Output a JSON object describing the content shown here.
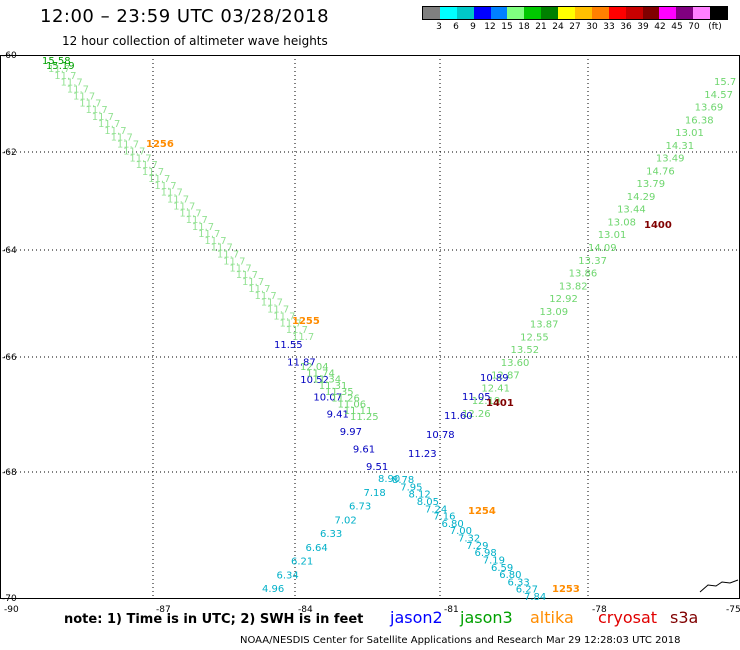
{
  "title": "12:00 – 23:59 UTC 03/28/2018",
  "subtitle": "12 hour collection of altimeter wave heights",
  "legend": {
    "colors": [
      "#808080",
      "#00ffff",
      "#00c8c8",
      "#0000ff",
      "#0080ff",
      "#80ff80",
      "#00c800",
      "#008000",
      "#ffff00",
      "#ffc000",
      "#ff8000",
      "#ff0000",
      "#c80000",
      "#800000",
      "#ff00ff",
      "#800080",
      "#ff80ff",
      "#000000"
    ],
    "labels": [
      "3",
      "6",
      "9",
      "12",
      "15",
      "18",
      "21",
      "24",
      "27",
      "30",
      "33",
      "36",
      "39",
      "42",
      "45",
      "70",
      "(ft)"
    ]
  },
  "axes": {
    "y_ticks": [
      "-60",
      "-62",
      "-64",
      "-66",
      "-68",
      "-70"
    ],
    "x_ticks": [
      "-90",
      "-87",
      "-84",
      "-81",
      "-78",
      "-75"
    ]
  },
  "time_labels": [
    {
      "text": "1256",
      "color": "#ff8c00"
    },
    {
      "text": "1255",
      "color": "#ff8c00"
    },
    {
      "text": "1254",
      "color": "#ff8c00"
    },
    {
      "text": "1253",
      "color": "#ff8c00"
    },
    {
      "text": "1400",
      "color": "#800000"
    },
    {
      "text": "1401",
      "color": "#800000"
    }
  ],
  "track_values": {
    "left_green_top": [
      "15.58",
      "15.19"
    ],
    "right_green": [
      "15.7",
      "14.57",
      "13.69",
      "16.38",
      "13.01",
      "14.31",
      "13.49",
      "14.76",
      "13.79",
      "14.29",
      "13.44",
      "13.08",
      "13.01",
      "14.09",
      "13.37",
      "13.86",
      "13.82",
      "12.92",
      "13.09",
      "13.87",
      "12.55",
      "13.52",
      "13.60",
      "12.87",
      "12.41",
      "12.19",
      "12.26"
    ],
    "right_blue": [
      "10.89",
      "11.05",
      "11.60",
      "10.78",
      "11.23"
    ],
    "left_blue": [
      "11.55",
      "11.87",
      "10.52",
      "10.07",
      "9.41",
      "9.97",
      "9.61",
      "9.51"
    ],
    "lower_left_cyan": [
      "8.90",
      "7.18",
      "6.73",
      "7.02",
      "6.33",
      "6.64",
      "6.21",
      "6.34",
      "4.96"
    ],
    "lower_right_cyan": [
      "8.78",
      "7.95",
      "8.12",
      "8.05",
      "7.24",
      "7.16",
      "6.80",
      "7.00",
      "7.32",
      "7.29",
      "6.98",
      "7.19",
      "6.59",
      "6.80",
      "6.33",
      "6.27",
      "7.84"
    ],
    "left_green_lower": [
      "12.04",
      "11.74",
      "11.34",
      "11.31",
      "11.35",
      "11.26",
      "11.06",
      "11.11",
      "11.25"
    ]
  },
  "note": "note: 1) Time is in UTC; 2) SWH is in feet",
  "satellites": [
    {
      "name": "jason2",
      "color": "#0000ff"
    },
    {
      "name": "jason3",
      "color": "#00a000"
    },
    {
      "name": "altika",
      "color": "#ff8c00"
    },
    {
      "name": "cryosat",
      "color": "#e00000"
    },
    {
      "name": "s3a",
      "color": "#800000"
    }
  ],
  "footer": "NOAA/NESDIS Center for Satellite Applications and Research    Mar 29 12:28:03 UTC 2018"
}
